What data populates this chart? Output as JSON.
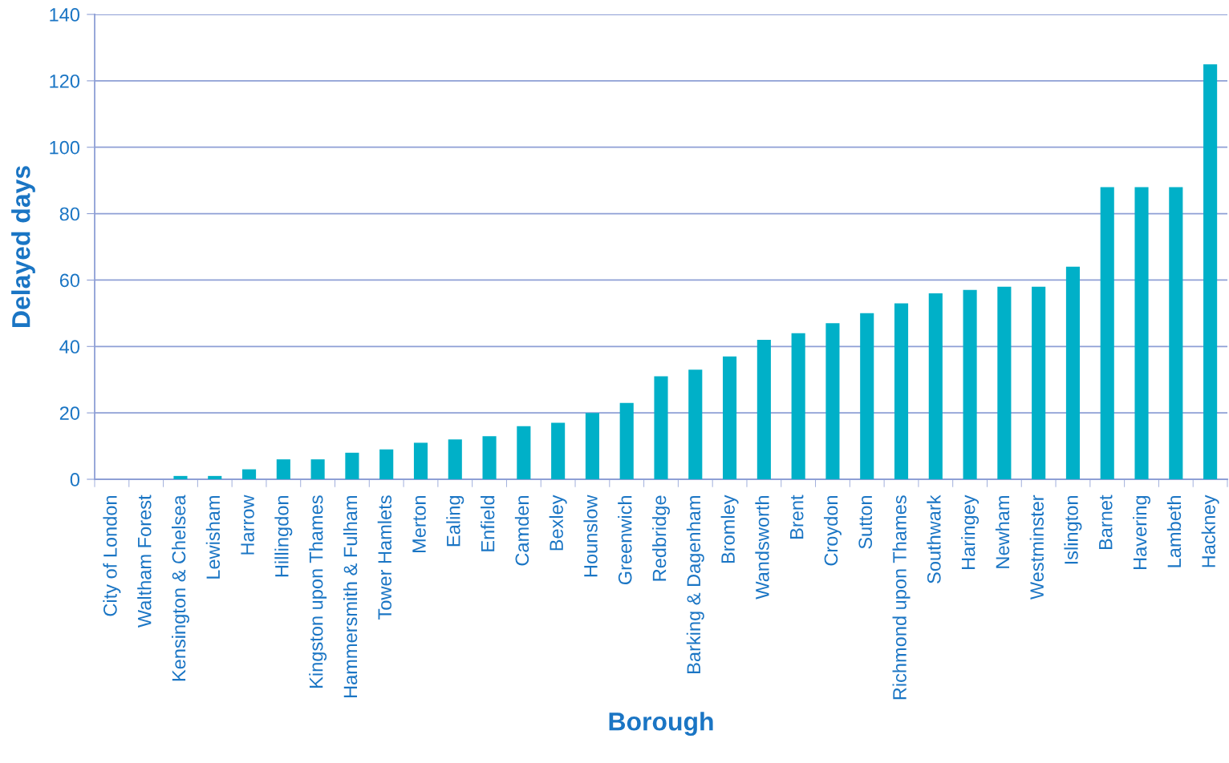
{
  "chart_data": {
    "type": "bar",
    "xlabel": "Borough",
    "ylabel": "Delayed days",
    "categories": [
      "City of London",
      "Waltham Forest",
      "Kensington & Chelsea",
      "Lewisham",
      "Harrow",
      "Hillingdon",
      "Kingston upon Thames",
      "Hammersmith & Fulham",
      "Tower Hamlets",
      "Merton",
      "Ealing",
      "Enfield",
      "Camden",
      "Bexley",
      "Hounslow",
      "Greenwich",
      "Redbridge",
      "Barking & Dagenham",
      "Bromley",
      "Wandsworth",
      "Brent",
      "Croydon",
      "Sutton",
      "Richmond upon Thames",
      "Southwark",
      "Haringey",
      "Newham",
      "Westminster",
      "Islington",
      "Barnet",
      "Havering",
      "Lambeth",
      "Hackney"
    ],
    "values": [
      0,
      0,
      1,
      1,
      3,
      6,
      6,
      8,
      9,
      11,
      12,
      13,
      16,
      17,
      20,
      23,
      31,
      33,
      37,
      42,
      44,
      47,
      50,
      53,
      56,
      57,
      58,
      58,
      64,
      88,
      88,
      88,
      125
    ],
    "color": "#00b0c8",
    "ylim": [
      0,
      140
    ],
    "yticks": [
      0,
      20,
      40,
      60,
      80,
      100,
      120,
      140
    ],
    "grid": "y",
    "legend": false
  }
}
